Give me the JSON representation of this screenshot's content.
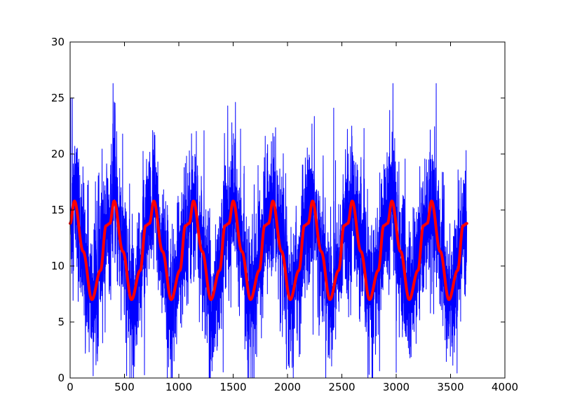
{
  "chart_data": {
    "type": "line",
    "title": "",
    "xlabel": "",
    "ylabel": "",
    "xlim": [
      0,
      4000
    ],
    "ylim": [
      0,
      30
    ],
    "xticks": [
      0,
      500,
      1000,
      1500,
      2000,
      2500,
      3000,
      3500,
      4000
    ],
    "yticks": [
      0,
      5,
      10,
      15,
      20,
      25,
      30
    ],
    "grid": false,
    "legend": "none",
    "n_points": 3650,
    "series": [
      {
        "color": "#0000ff",
        "line_width": "thin",
        "description_of_shape": "noisy daily values, x from 0 to 3650, oscillating around the seasonal curve; typical range 2–22, extremes near 0 and 26",
        "notable_points": [
          {
            "x": 0,
            "y": 20.7
          },
          {
            "x": 5,
            "y": 25.0
          },
          {
            "x": 20,
            "y": 25.0
          },
          {
            "x": 140,
            "y": 2.2
          },
          {
            "x": 395,
            "y": 26.3
          },
          {
            "x": 520,
            "y": 0.2
          },
          {
            "x": 940,
            "y": 0.0
          },
          {
            "x": 1290,
            "y": 0.0
          },
          {
            "x": 1450,
            "y": 24.3
          },
          {
            "x": 1990,
            "y": 0.8
          },
          {
            "x": 2425,
            "y": 24.1
          },
          {
            "x": 2940,
            "y": 23.9
          },
          {
            "x": 3000,
            "y": 0.5
          },
          {
            "x": 3450,
            "y": 3.4
          }
        ]
      },
      {
        "color": "#ff0000",
        "line_width": "thick",
        "description_of_shape": "smooth seasonal curve with period of 365 days, peaks of 15.8 near x = 40 + 365k, troughs of 7.0 near x = 200 + 365k, a shoulder at about 13.8 before each peak",
        "x": [
          0,
          40,
          120,
          200,
          280,
          330,
          365,
          405,
          485,
          565,
          645,
          695,
          730,
          770,
          850,
          930,
          1010,
          1060,
          1095,
          1135,
          1215,
          1295,
          1375,
          1425,
          1460,
          1500,
          1580,
          1660,
          1740,
          1790,
          1825,
          1865,
          1945,
          2025,
          2105,
          2155,
          2190,
          2230,
          2310,
          2390,
          2470,
          2520,
          2555,
          2595,
          2675,
          2755,
          2835,
          2885,
          2920,
          2960,
          3040,
          3120,
          3200,
          3250,
          3285,
          3325,
          3405,
          3485,
          3565,
          3615,
          3650
        ],
        "values": [
          13.8,
          15.8,
          11.3,
          7.0,
          9.6,
          13.6,
          13.8,
          15.8,
          11.3,
          7.0,
          9.6,
          13.6,
          13.8,
          15.8,
          11.3,
          7.0,
          9.6,
          13.6,
          13.8,
          15.8,
          11.3,
          7.0,
          9.6,
          13.6,
          13.8,
          15.8,
          11.3,
          7.0,
          9.6,
          13.6,
          13.8,
          15.8,
          11.3,
          7.0,
          9.6,
          13.6,
          13.8,
          15.8,
          11.3,
          7.0,
          9.6,
          13.6,
          13.8,
          15.8,
          11.3,
          7.0,
          9.6,
          13.6,
          13.8,
          15.8,
          11.3,
          7.0,
          9.6,
          13.6,
          13.8,
          15.8,
          11.3,
          7.0,
          9.6,
          13.6,
          13.8
        ]
      }
    ]
  }
}
